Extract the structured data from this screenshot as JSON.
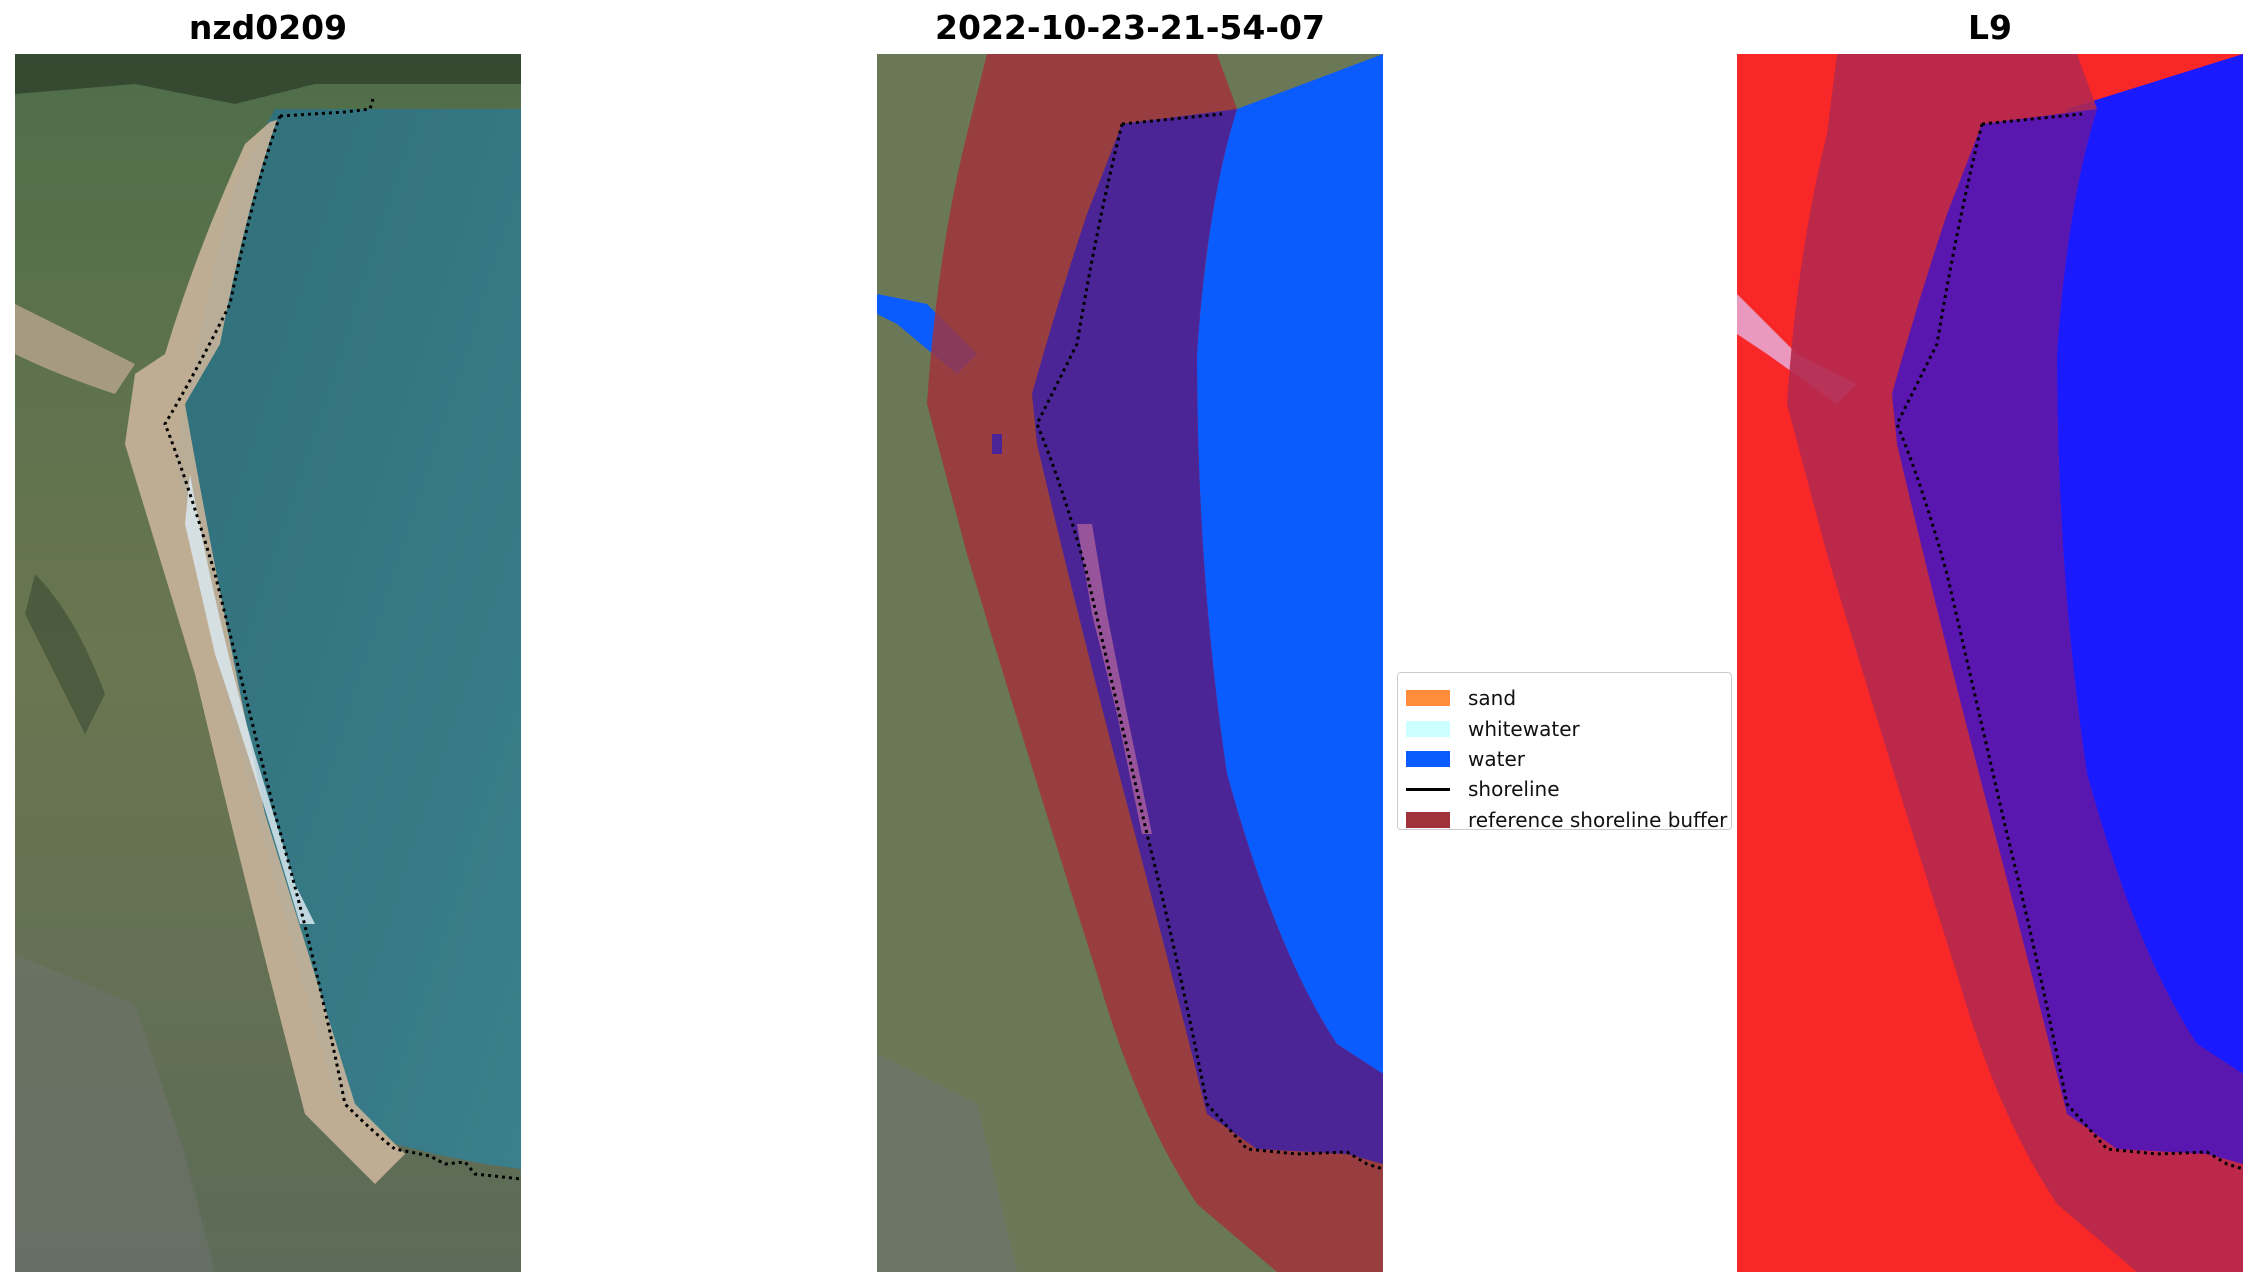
{
  "panels": [
    {
      "title": "nzd0209",
      "name": "rgb-image-panel"
    },
    {
      "title": "2022-10-23-21-54-07",
      "name": "classified-image-panel"
    },
    {
      "title": "L9",
      "name": "index-image-panel"
    }
  ],
  "legend": {
    "items": [
      {
        "label": "sand",
        "color": "#ff8c3a",
        "kind": "patch"
      },
      {
        "label": "whitewater",
        "color": "#ccffff",
        "kind": "patch"
      },
      {
        "label": "water",
        "color": "#0b5cff",
        "kind": "patch"
      },
      {
        "label": "shoreline",
        "color": "#000000",
        "kind": "line"
      },
      {
        "label": "reference shoreline buffer",
        "color": "#a0323c",
        "kind": "patch"
      }
    ]
  },
  "colors": {
    "shoreline": "#000000",
    "buffer": "#a0323c",
    "water": "#0b5cff",
    "index_land": "#ff1a1a",
    "index_water": "#1a1aff"
  }
}
